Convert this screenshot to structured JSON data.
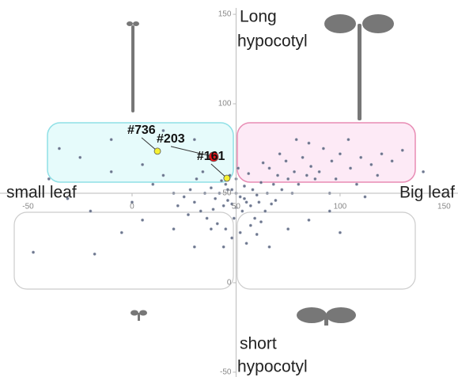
{
  "chart_data": {
    "type": "scatter",
    "xlim": [
      -63.5,
      156.7
    ],
    "ylim": [
      -52.7,
      158
    ],
    "xticks": [
      -50,
      0,
      50,
      100,
      150
    ],
    "yticks": [
      -50,
      0,
      50,
      100,
      150
    ],
    "axis_cross": [
      50,
      50
    ],
    "color": "#4a5570",
    "x": [
      50,
      48,
      52,
      45,
      55,
      42,
      58,
      50,
      50,
      46,
      54,
      40,
      60,
      47,
      53,
      38,
      62,
      44,
      56,
      49,
      35,
      65,
      43,
      57,
      51,
      39,
      61,
      46,
      54,
      48,
      68,
      70,
      72,
      66,
      75,
      63,
      78,
      80,
      74,
      69,
      84,
      82,
      88,
      71,
      77,
      86,
      90,
      64,
      59,
      67,
      30,
      28,
      33,
      25,
      36,
      31,
      22,
      27,
      34,
      20,
      41,
      45,
      52,
      57,
      38,
      60,
      48,
      55,
      44,
      62,
      92,
      96,
      100,
      105,
      98,
      110,
      115,
      85,
      79,
      104,
      120,
      125,
      130,
      118,
      140,
      95,
      108,
      112,
      15,
      10,
      5,
      -10,
      -25,
      -40,
      0,
      -20,
      -47.5,
      -18,
      -31,
      5,
      -5,
      20,
      30,
      75,
      85,
      95,
      100,
      66,
      -35,
      -10,
      15,
      30
    ],
    "values": [
      50,
      52,
      48,
      55,
      45,
      50,
      52,
      58,
      42,
      46,
      54,
      47,
      49,
      60,
      40,
      53,
      56,
      43,
      61,
      36,
      50,
      50,
      57,
      43,
      64,
      41,
      45,
      52,
      47,
      44,
      55,
      60,
      52,
      64,
      58,
      67,
      62,
      55,
      68,
      46,
      60,
      70,
      58,
      72,
      50,
      65,
      62,
      40,
      36,
      44,
      45,
      52,
      40,
      48,
      36,
      58,
      43,
      38,
      62,
      50,
      33,
      30,
      28,
      32,
      30,
      27,
      25,
      22,
      20,
      34,
      75,
      68,
      72,
      64,
      58,
      70,
      66,
      78,
      80,
      80,
      72,
      68,
      74,
      60,
      62,
      50,
      55,
      48,
      60,
      55,
      66,
      62,
      70,
      58,
      45,
      40,
      17,
      16,
      47,
      35,
      28,
      30,
      20,
      30,
      35,
      40,
      28,
      20,
      75,
      80,
      85,
      80
    ],
    "highlights": [
      {
        "label": "#736",
        "x": 12.2,
        "y": 73.5,
        "color": "#f5f032"
      },
      {
        "label": "#203",
        "x": 39.2,
        "y": 70.4,
        "color": "#e8141b"
      },
      {
        "label": "#161",
        "x": 45.6,
        "y": 58.4,
        "color": "#f5f032"
      }
    ],
    "annotations": [
      "Long",
      "hypocotyl",
      "small leaf",
      "Big leaf",
      "short",
      "hypocotyl"
    ]
  }
}
